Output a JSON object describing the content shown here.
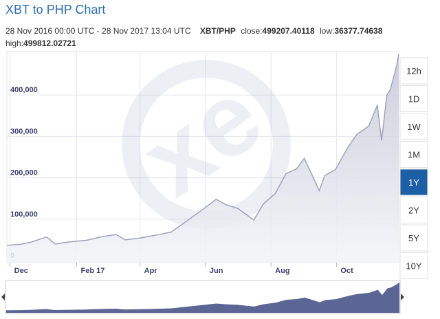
{
  "header": {
    "title": "XBT to PHP Chart",
    "range_text": "28 Nov 2016 00:00 UTC - 28 Nov 2017 13:04 UTC",
    "pair": "XBT/PHP",
    "close_label": "close:",
    "close": "499207.40118",
    "low_label": "low:",
    "low": "36377.74638",
    "high_label": "high:",
    "high": "499812.02721"
  },
  "range_buttons": [
    {
      "label": "12h",
      "selected": false
    },
    {
      "label": "1D",
      "selected": false
    },
    {
      "label": "1W",
      "selected": false
    },
    {
      "label": "1M",
      "selected": false
    },
    {
      "label": "1Y",
      "selected": true
    },
    {
      "label": "2Y",
      "selected": false
    },
    {
      "label": "5Y",
      "selected": false
    },
    {
      "label": "10Y",
      "selected": false
    }
  ],
  "watermark": "xe",
  "chart_data": {
    "type": "area",
    "grid": true,
    "x": [
      "2016-11-28",
      "2016-12-10",
      "2016-12-20",
      "2017-01-04",
      "2017-01-12",
      "2017-01-25",
      "2017-02-10",
      "2017-02-25",
      "2017-03-10",
      "2017-03-18",
      "2017-03-31",
      "2017-04-15",
      "2017-04-30",
      "2017-05-10",
      "2017-05-25",
      "2017-06-11",
      "2017-06-20",
      "2017-07-01",
      "2017-07-16",
      "2017-07-25",
      "2017-08-05",
      "2017-08-15",
      "2017-08-25",
      "2017-09-01",
      "2017-09-15",
      "2017-09-20",
      "2017-09-30",
      "2017-10-12",
      "2017-10-20",
      "2017-10-31",
      "2017-11-08",
      "2017-11-12",
      "2017-11-17",
      "2017-11-20",
      "2017-11-26",
      "2017-11-28"
    ],
    "series": [
      {
        "name": "XBT/PHP",
        "color": "#9da2bb",
        "values": [
          37000,
          39000,
          44000,
          57000,
          40000,
          45000,
          49000,
          58000,
          63000,
          50000,
          54000,
          61000,
          69000,
          87000,
          115000,
          148000,
          135000,
          126000,
          98000,
          137000,
          162000,
          210000,
          222000,
          247000,
          169000,
          205000,
          220000,
          275000,
          305000,
          325000,
          375000,
          290000,
          400000,
          412000,
          470000,
          499207
        ]
      }
    ],
    "xlim": [
      "2016-11-28",
      "2017-11-28"
    ],
    "xticks": [
      {
        "value": "2016-12-01",
        "label": "Dec"
      },
      {
        "value": "2017-02-01",
        "label": "Feb 17"
      },
      {
        "value": "2017-04-01",
        "label": "Apr"
      },
      {
        "value": "2017-06-01",
        "label": "Jun"
      },
      {
        "value": "2017-08-01",
        "label": "Aug"
      },
      {
        "value": "2017-10-01",
        "label": "Oct"
      }
    ],
    "ylim": [
      -5000,
      505000
    ],
    "yticks": [
      0,
      {
        "value": 100000,
        "label": "100,000"
      },
      {
        "value": 200000,
        "label": "200,000"
      },
      {
        "value": 300000,
        "label": "300,000"
      },
      {
        "value": 400000,
        "label": "400,000"
      }
    ]
  }
}
